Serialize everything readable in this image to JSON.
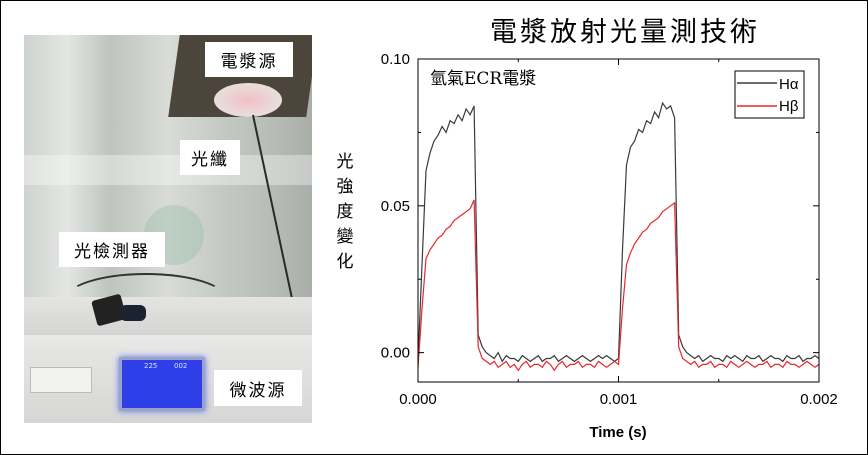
{
  "photo": {
    "labels": {
      "plasma_source": "電漿源",
      "fiber": "光纖",
      "detector": "光檢測器",
      "microwave": "微波源"
    },
    "screen": {
      "value1": "225",
      "value2": "002"
    }
  },
  "chart_data": {
    "type": "line",
    "title": "電漿放射光量測技術",
    "xlabel": "Time (s)",
    "ylabel": "光強度變化",
    "annotation": "氫氣ECR電漿",
    "xlim": [
      0,
      0.002
    ],
    "ylim": [
      -0.01,
      0.1
    ],
    "xticks": [
      0,
      0.001,
      0.002
    ],
    "xtick_labels": [
      "0.000",
      "0.001",
      "0.002"
    ],
    "yticks": [
      0,
      0.05,
      0.1
    ],
    "ytick_labels": [
      "0.00",
      "0.05",
      "0.10"
    ],
    "legend_position": "top-right",
    "x_step": 2e-05,
    "series": [
      {
        "name": "Hα",
        "color": "#3a3a3a",
        "values": [
          -0.003,
          0.03,
          0.062,
          0.068,
          0.072,
          0.074,
          0.077,
          0.075,
          0.079,
          0.078,
          0.081,
          0.079,
          0.083,
          0.081,
          0.084,
          0.006,
          0.002,
          0.0,
          -0.001,
          -0.002,
          0.0,
          -0.003,
          -0.001,
          -0.002,
          -0.002,
          -0.003,
          -0.001,
          -0.002,
          -0.003,
          -0.002,
          -0.001,
          -0.003,
          -0.002,
          -0.002,
          -0.001,
          -0.003,
          -0.002,
          -0.001,
          -0.002,
          -0.003,
          -0.002,
          -0.001,
          -0.002,
          -0.003,
          -0.002,
          -0.001,
          -0.002,
          -0.001,
          -0.002,
          -0.003,
          -0.002,
          0.035,
          0.064,
          0.07,
          0.072,
          0.076,
          0.075,
          0.079,
          0.078,
          0.082,
          0.08,
          0.085,
          0.083,
          0.084,
          0.08,
          0.006,
          0.002,
          0.0,
          -0.001,
          -0.002,
          -0.001,
          -0.003,
          -0.002,
          -0.001,
          -0.002,
          -0.002,
          -0.003,
          -0.001,
          -0.002,
          -0.001,
          -0.002,
          -0.003,
          -0.001,
          -0.002,
          -0.002,
          -0.001,
          -0.003,
          -0.002,
          -0.001,
          -0.002,
          -0.002,
          -0.003,
          -0.001,
          -0.002,
          -0.002,
          -0.001,
          -0.003,
          -0.002,
          -0.002,
          -0.001,
          -0.002
        ]
      },
      {
        "name": "Hβ",
        "color": "#e8262b",
        "values": [
          -0.005,
          0.015,
          0.032,
          0.035,
          0.037,
          0.039,
          0.04,
          0.042,
          0.043,
          0.045,
          0.046,
          0.047,
          0.048,
          0.049,
          0.052,
          0.002,
          -0.002,
          -0.003,
          -0.004,
          -0.003,
          -0.005,
          -0.004,
          -0.003,
          -0.005,
          -0.004,
          -0.006,
          -0.004,
          -0.003,
          -0.005,
          -0.004,
          -0.004,
          -0.005,
          -0.003,
          -0.004,
          -0.006,
          -0.004,
          -0.003,
          -0.005,
          -0.004,
          -0.004,
          -0.003,
          -0.005,
          -0.004,
          -0.004,
          -0.005,
          -0.003,
          -0.004,
          -0.005,
          -0.004,
          -0.003,
          -0.004,
          0.015,
          0.03,
          0.034,
          0.037,
          0.039,
          0.041,
          0.042,
          0.044,
          0.045,
          0.046,
          0.048,
          0.049,
          0.05,
          0.051,
          0.002,
          -0.002,
          -0.003,
          -0.004,
          -0.003,
          -0.005,
          -0.004,
          -0.004,
          -0.003,
          -0.005,
          -0.004,
          -0.004,
          -0.005,
          -0.003,
          -0.004,
          -0.005,
          -0.004,
          -0.003,
          -0.004,
          -0.005,
          -0.004,
          -0.004,
          -0.003,
          -0.005,
          -0.004,
          -0.004,
          -0.005,
          -0.003,
          -0.004,
          -0.004,
          -0.005,
          -0.004,
          -0.003,
          -0.004,
          -0.005,
          -0.004
        ]
      }
    ]
  }
}
